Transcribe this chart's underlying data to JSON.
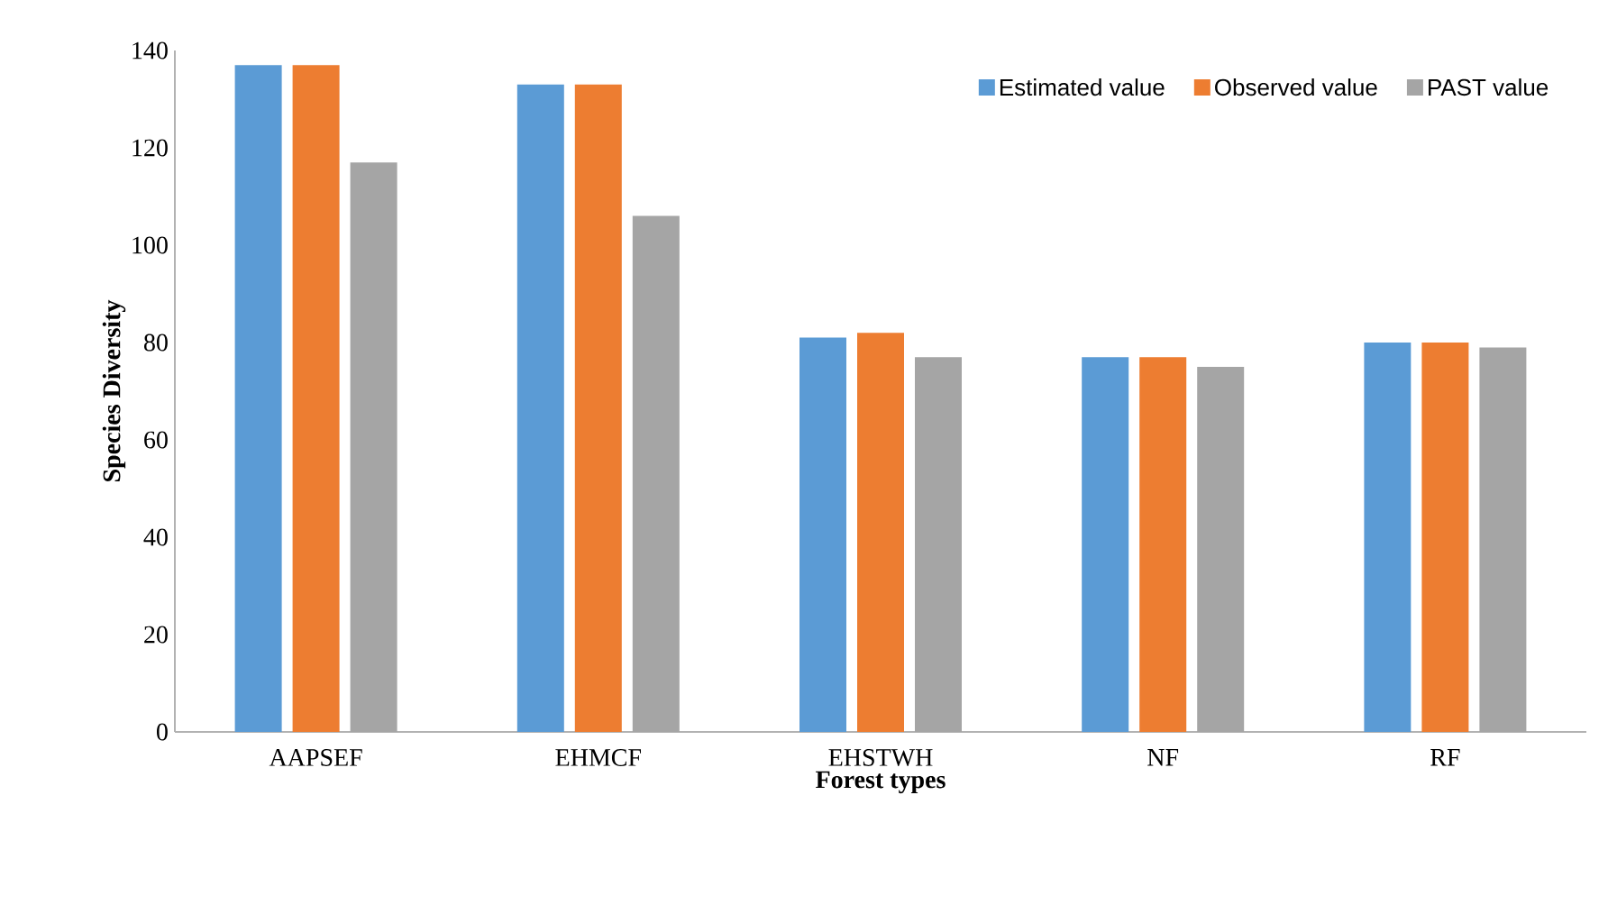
{
  "chart_data": {
    "type": "bar",
    "xlabel": "Forest types",
    "ylabel": "Species Diversity",
    "categories": [
      "AAPSEF",
      "EHMCF",
      "EHSTWH",
      "NF",
      "RF"
    ],
    "series": [
      {
        "name": "Estimated value",
        "color": "#5b9bd5",
        "values": [
          137,
          133,
          81,
          77,
          80
        ]
      },
      {
        "name": "Observed value",
        "color": "#ed7d31",
        "values": [
          137,
          133,
          82,
          77,
          80
        ]
      },
      {
        "name": "PAST value",
        "color": "#a5a5a5",
        "values": [
          117,
          106,
          77,
          75,
          79
        ]
      }
    ],
    "ylim": [
      0,
      140
    ],
    "yticks": [
      0,
      20,
      40,
      60,
      80,
      100,
      120,
      140
    ],
    "grid": false,
    "legend": "top right"
  }
}
